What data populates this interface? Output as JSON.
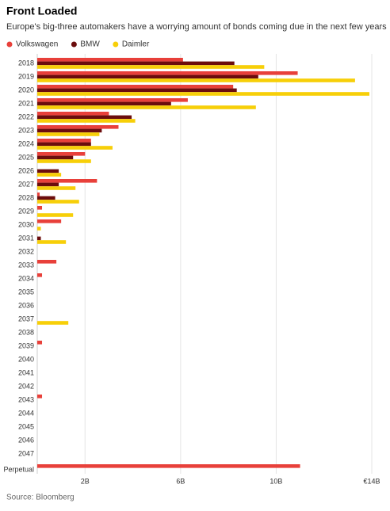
{
  "chart_data": {
    "type": "bar",
    "orientation": "horizontal",
    "title": "Front Loaded",
    "subtitle": "Europe's big-three automakers have a worrying amount of bonds coming due in the next few years",
    "source": "Source: Bloomberg",
    "categories": [
      "2018",
      "2019",
      "2020",
      "2021",
      "2022",
      "2023",
      "2024",
      "2025",
      "2026",
      "2027",
      "2028",
      "2029",
      "2030",
      "2031",
      "2032",
      "2033",
      "2034",
      "2035",
      "2036",
      "2037",
      "2038",
      "2039",
      "2040",
      "2041",
      "2042",
      "2043",
      "2044",
      "2045",
      "2046",
      "2047",
      "Perpetual"
    ],
    "series": [
      {
        "name": "Volkswagen",
        "color": "#e8403a",
        "values": [
          6.1,
          10.9,
          8.2,
          6.3,
          3.0,
          3.4,
          2.25,
          2.0,
          0,
          2.5,
          0.1,
          0.2,
          1.0,
          0,
          0,
          0.8,
          0.2,
          0,
          0,
          0,
          0,
          0.2,
          0,
          0,
          0,
          0.2,
          0,
          0,
          0,
          0,
          11.0
        ]
      },
      {
        "name": "BMW",
        "color": "#6b0d0d",
        "values": [
          8.25,
          9.25,
          8.35,
          5.6,
          3.95,
          2.7,
          2.25,
          1.5,
          0.9,
          0.9,
          0.75,
          0,
          0,
          0.15,
          0,
          0,
          0,
          0,
          0,
          0,
          0,
          0,
          0,
          0,
          0,
          0,
          0,
          0,
          0,
          0,
          0
        ]
      },
      {
        "name": "Daimler",
        "color": "#f7cf08",
        "values": [
          9.5,
          13.3,
          13.9,
          9.15,
          4.1,
          2.6,
          3.15,
          2.25,
          1.0,
          1.6,
          1.75,
          1.5,
          0.15,
          1.2,
          0,
          0,
          0,
          0,
          0,
          1.3,
          0,
          0,
          0,
          0,
          0,
          0,
          0,
          0,
          0,
          0,
          0
        ]
      }
    ],
    "xlim": [
      0,
      14
    ],
    "xticks": [
      {
        "value": 2,
        "label": "2B"
      },
      {
        "value": 6,
        "label": "6B"
      },
      {
        "value": 10,
        "label": "10B"
      },
      {
        "value": 14,
        "label": "€14B"
      }
    ],
    "grid": true
  }
}
